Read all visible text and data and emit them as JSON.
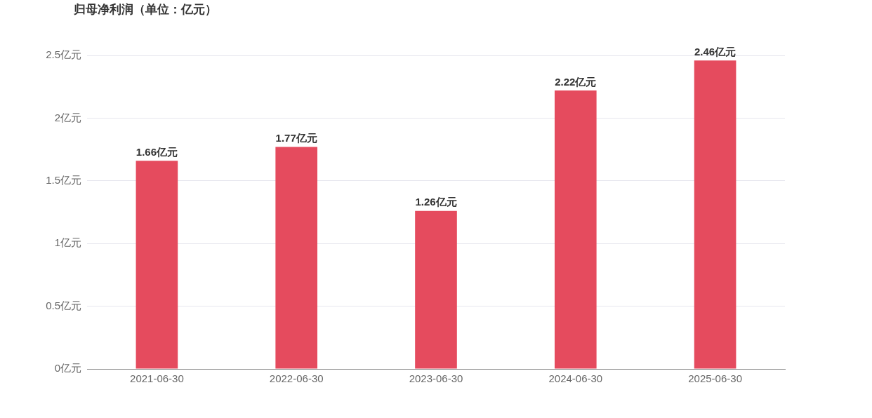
{
  "chart_data": {
    "type": "bar",
    "title": "归母净利润（单位：亿元）",
    "categories": [
      "2021-06-30",
      "2022-06-30",
      "2023-06-30",
      "2024-06-30",
      "2025-06-30"
    ],
    "values": [
      1.66,
      1.77,
      1.26,
      2.22,
      2.46
    ],
    "value_labels": [
      "1.66亿元",
      "1.77亿元",
      "1.26亿元",
      "2.22亿元",
      "2.46亿元"
    ],
    "color": "#e54b5e",
    "ylim": [
      0,
      2.5
    ],
    "yticks": [
      {
        "value": 0,
        "label": "0亿元"
      },
      {
        "value": 0.5,
        "label": "0.5亿元"
      },
      {
        "value": 1,
        "label": "1亿元"
      },
      {
        "value": 1.5,
        "label": "1.5亿元"
      },
      {
        "value": 2,
        "label": "2亿元"
      },
      {
        "value": 2.5,
        "label": "2.5亿元"
      }
    ],
    "grid": "y",
    "legend": false
  }
}
